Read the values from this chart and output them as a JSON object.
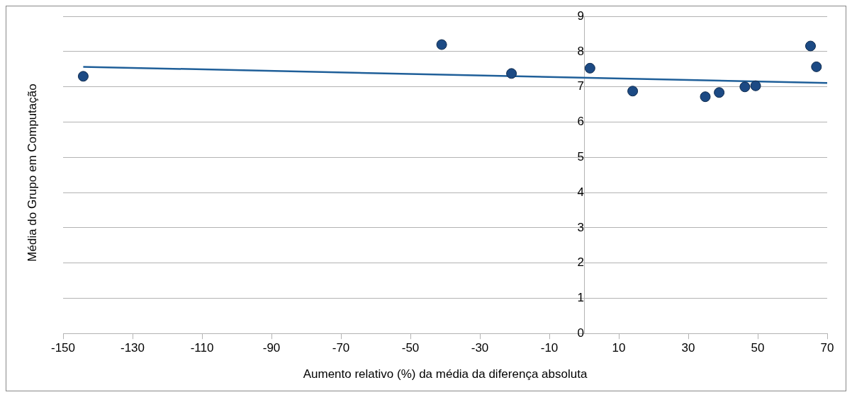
{
  "chart_data": {
    "type": "scatter",
    "xlabel": "Aumento relativo (%) da média da diferença absoluta",
    "ylabel": "Média do Grupo em Computação",
    "series": [
      {
        "type": "scatter",
        "marker": "circle",
        "color": "#1c4a84",
        "x": [
          -144.2,
          -41.0,
          -20.9,
          1.7,
          14.0,
          34.9,
          38.9,
          46.3,
          49.4,
          65.2,
          66.9
        ],
        "values": [
          7.3,
          8.2,
          7.38,
          7.53,
          6.88,
          6.72,
          6.84,
          7.0,
          7.03,
          8.16,
          7.57
        ]
      },
      {
        "type": "line",
        "color": "#1f5f99",
        "x": [
          -144.2,
          70
        ],
        "values": [
          7.57,
          7.11
        ]
      }
    ],
    "xlim": [
      -150,
      70
    ],
    "xticks": [
      -150,
      -130,
      -110,
      -90,
      -70,
      -50,
      -30,
      -10,
      10,
      30,
      50,
      70
    ],
    "ylim": [
      0,
      9
    ],
    "yticks": [
      0,
      1,
      2,
      3,
      4,
      5,
      6,
      7,
      8,
      9
    ],
    "grid": "y",
    "legend": false
  }
}
